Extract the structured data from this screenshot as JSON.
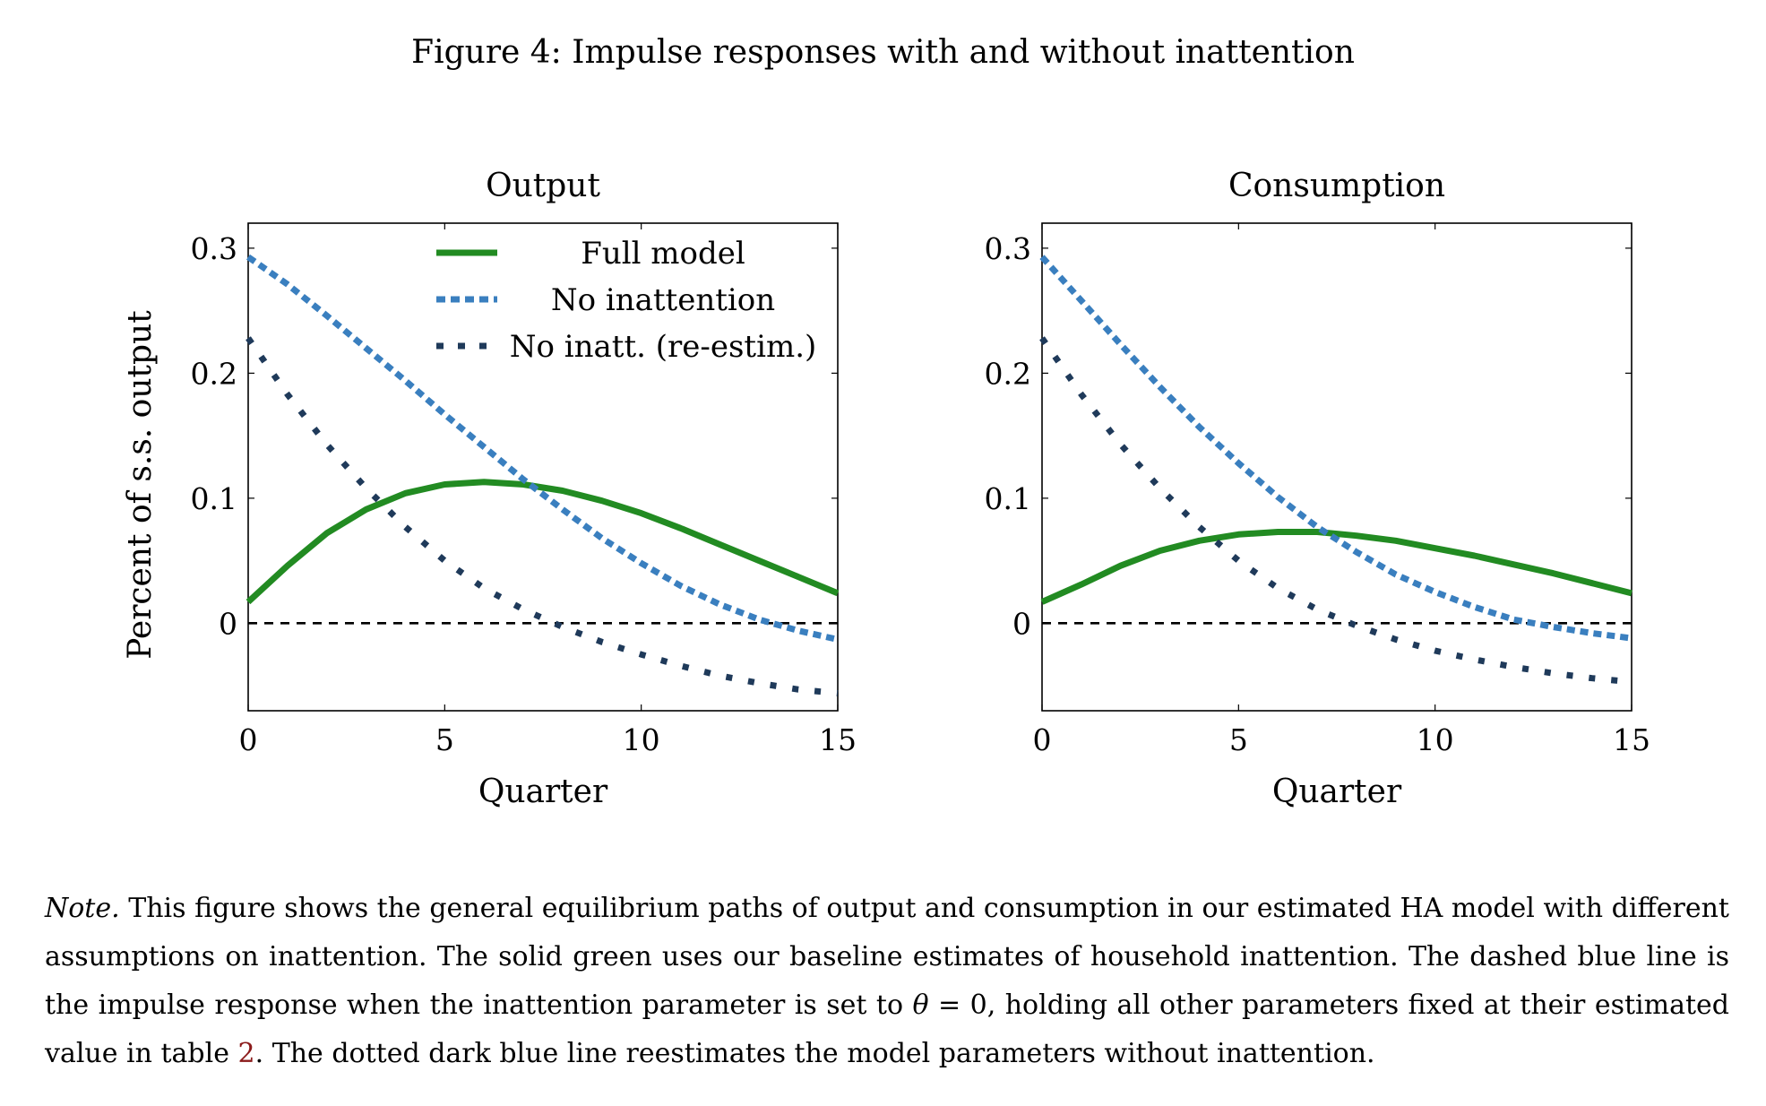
{
  "figure": {
    "title": "Figure 4: Impulse responses with and without inattention"
  },
  "colors": {
    "full_model": "#228b22",
    "no_inattention": "#3a7fbf",
    "no_inatt_reestim": "#1f3a5a",
    "zero_line": "#000000"
  },
  "chart_data": [
    {
      "type": "line",
      "title": "Output",
      "xlabel": "Quarter",
      "ylabel": "Percent of s.s. output",
      "xlim": [
        0,
        15
      ],
      "ylim": [
        -0.07,
        0.32
      ],
      "xticks": [
        "0",
        "5",
        "10",
        "15"
      ],
      "yticks": [
        "0",
        "0.1",
        "0.2",
        "0.3"
      ],
      "legend": "top-right",
      "x": [
        0,
        1,
        2,
        3,
        4,
        5,
        6,
        7,
        8,
        9,
        10,
        11,
        12,
        13,
        14,
        15
      ],
      "series": [
        {
          "name": "Full model",
          "style": "solid",
          "values": [
            0.017,
            0.046,
            0.072,
            0.091,
            0.104,
            0.111,
            0.113,
            0.111,
            0.106,
            0.098,
            0.088,
            0.076,
            0.063,
            0.05,
            0.037,
            0.024
          ]
        },
        {
          "name": "No inattention",
          "style": "dashed",
          "values": [
            0.293,
            0.271,
            0.246,
            0.22,
            0.194,
            0.167,
            0.141,
            0.115,
            0.091,
            0.068,
            0.048,
            0.03,
            0.015,
            0.003,
            -0.006,
            -0.013
          ]
        },
        {
          "name": "No inatt. (re-estim.)",
          "style": "dotted",
          "values": [
            0.228,
            0.183,
            0.143,
            0.108,
            0.077,
            0.05,
            0.028,
            0.011,
            -0.003,
            -0.015,
            -0.025,
            -0.034,
            -0.042,
            -0.048,
            -0.053,
            -0.056
          ]
        }
      ],
      "reference_line": 0
    },
    {
      "type": "line",
      "title": "Consumption",
      "xlabel": "Quarter",
      "ylabel": "",
      "xlim": [
        0,
        15
      ],
      "ylim": [
        -0.07,
        0.32
      ],
      "xticks": [
        "0",
        "5",
        "10",
        "15"
      ],
      "yticks": [
        "0",
        "0.1",
        "0.2",
        "0.3"
      ],
      "x": [
        0,
        1,
        2,
        3,
        4,
        5,
        6,
        7,
        8,
        9,
        10,
        11,
        12,
        13,
        14,
        15
      ],
      "series": [
        {
          "name": "Full model",
          "style": "solid",
          "values": [
            0.017,
            0.031,
            0.046,
            0.058,
            0.066,
            0.071,
            0.073,
            0.073,
            0.07,
            0.066,
            0.06,
            0.054,
            0.047,
            0.04,
            0.032,
            0.024
          ]
        },
        {
          "name": "No inattention",
          "style": "dashed",
          "values": [
            0.293,
            0.258,
            0.223,
            0.189,
            0.157,
            0.128,
            0.101,
            0.077,
            0.057,
            0.039,
            0.025,
            0.013,
            0.003,
            -0.003,
            -0.008,
            -0.012
          ]
        },
        {
          "name": "No inatt. (re-estim.)",
          "style": "dotted",
          "values": [
            0.228,
            0.183,
            0.143,
            0.108,
            0.077,
            0.05,
            0.028,
            0.011,
            -0.002,
            -0.013,
            -0.022,
            -0.029,
            -0.035,
            -0.04,
            -0.044,
            -0.047
          ]
        }
      ],
      "reference_line": 0
    }
  ],
  "note": {
    "label": "Note.",
    "text1": "This figure shows the general equilibrium paths of output and consumption in our estimated HA model with different assumptions on inattention. The solid green uses our baseline estimates of household inattention. The dashed blue line is the impulse response when the inattention parameter is set to",
    "math": "θ",
    "text2": "= 0, holding all other parameters fixed at their estimated value in table",
    "ref": "2",
    "text3": ". The dotted dark blue line reestimates the model parameters without inattention."
  }
}
